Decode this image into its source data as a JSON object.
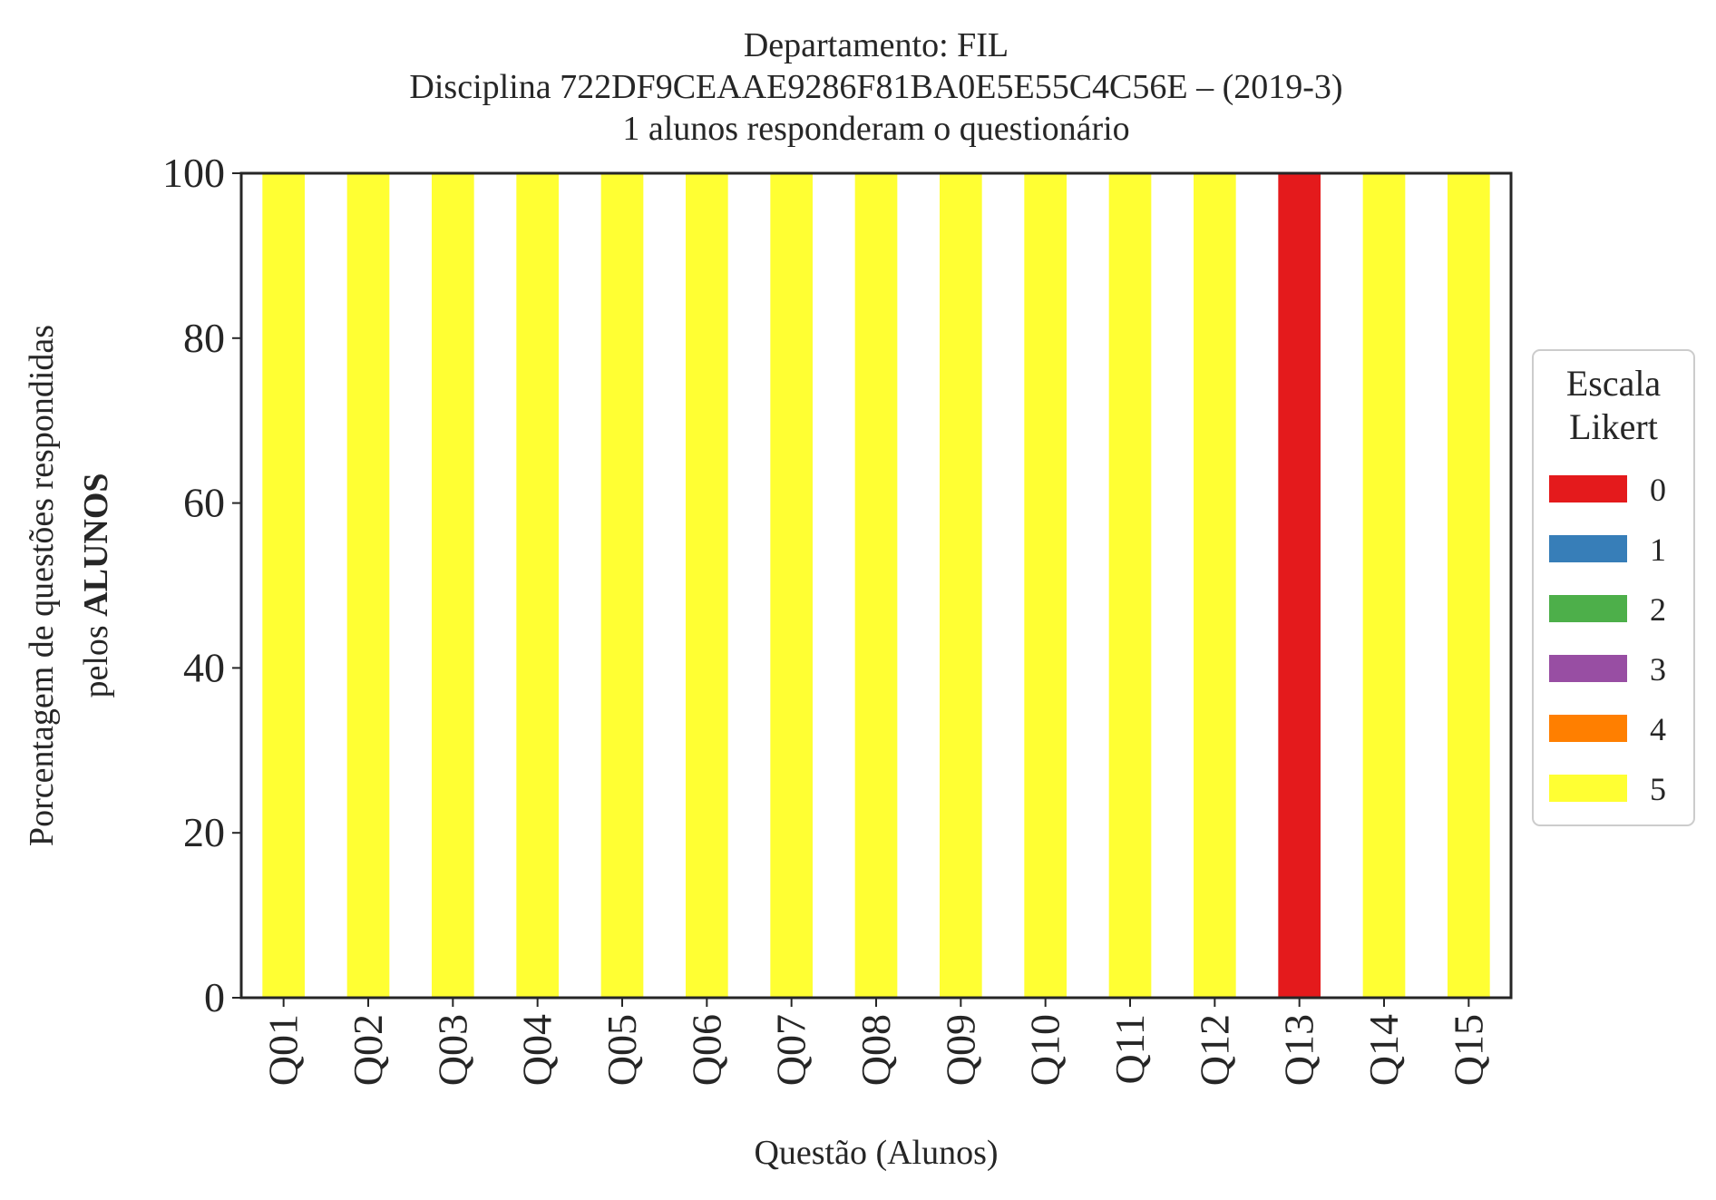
{
  "chart_data": {
    "type": "bar",
    "stacked": true,
    "title_lines": [
      "Departamento: FIL",
      "Disciplina 722DF9CEAAE9286F81BA0E5E55C4C56E – (2019-3)",
      "1 alunos responderam o questionário"
    ],
    "xlabel": "Questão (Alunos)",
    "ylabel_line1": "Porcentagem de questões respondidas",
    "ylabel_line2_prefix": "pelos ",
    "ylabel_line2_bold": "ALUNOS",
    "ylim": [
      0,
      100
    ],
    "yticks": [
      0,
      20,
      40,
      60,
      80,
      100
    ],
    "grid": false,
    "categories": [
      "Q01",
      "Q02",
      "Q03",
      "Q04",
      "Q05",
      "Q06",
      "Q07",
      "Q08",
      "Q09",
      "Q10",
      "Q11",
      "Q12",
      "Q13",
      "Q14",
      "Q15"
    ],
    "legend": {
      "title_lines": [
        "Escala",
        "Likert"
      ],
      "placement": "center-right outside",
      "entries": [
        "0",
        "1",
        "2",
        "3",
        "4",
        "5"
      ]
    },
    "series": [
      {
        "name": "0",
        "color": "#e41a1c",
        "values": [
          0,
          0,
          0,
          0,
          0,
          0,
          0,
          0,
          0,
          0,
          0,
          0,
          100,
          0,
          0
        ]
      },
      {
        "name": "1",
        "color": "#377eb8",
        "values": [
          0,
          0,
          0,
          0,
          0,
          0,
          0,
          0,
          0,
          0,
          0,
          0,
          0,
          0,
          0
        ]
      },
      {
        "name": "2",
        "color": "#4daf4a",
        "values": [
          0,
          0,
          0,
          0,
          0,
          0,
          0,
          0,
          0,
          0,
          0,
          0,
          0,
          0,
          0
        ]
      },
      {
        "name": "3",
        "color": "#984ea3",
        "values": [
          0,
          0,
          0,
          0,
          0,
          0,
          0,
          0,
          0,
          0,
          0,
          0,
          0,
          0,
          0
        ]
      },
      {
        "name": "4",
        "color": "#ff7f00",
        "values": [
          0,
          0,
          0,
          0,
          0,
          0,
          0,
          0,
          0,
          0,
          0,
          0,
          0,
          0,
          0
        ]
      },
      {
        "name": "5",
        "color": "#ffff33",
        "values": [
          100,
          100,
          100,
          100,
          100,
          100,
          100,
          100,
          100,
          100,
          100,
          100,
          0,
          100,
          100
        ]
      }
    ]
  }
}
